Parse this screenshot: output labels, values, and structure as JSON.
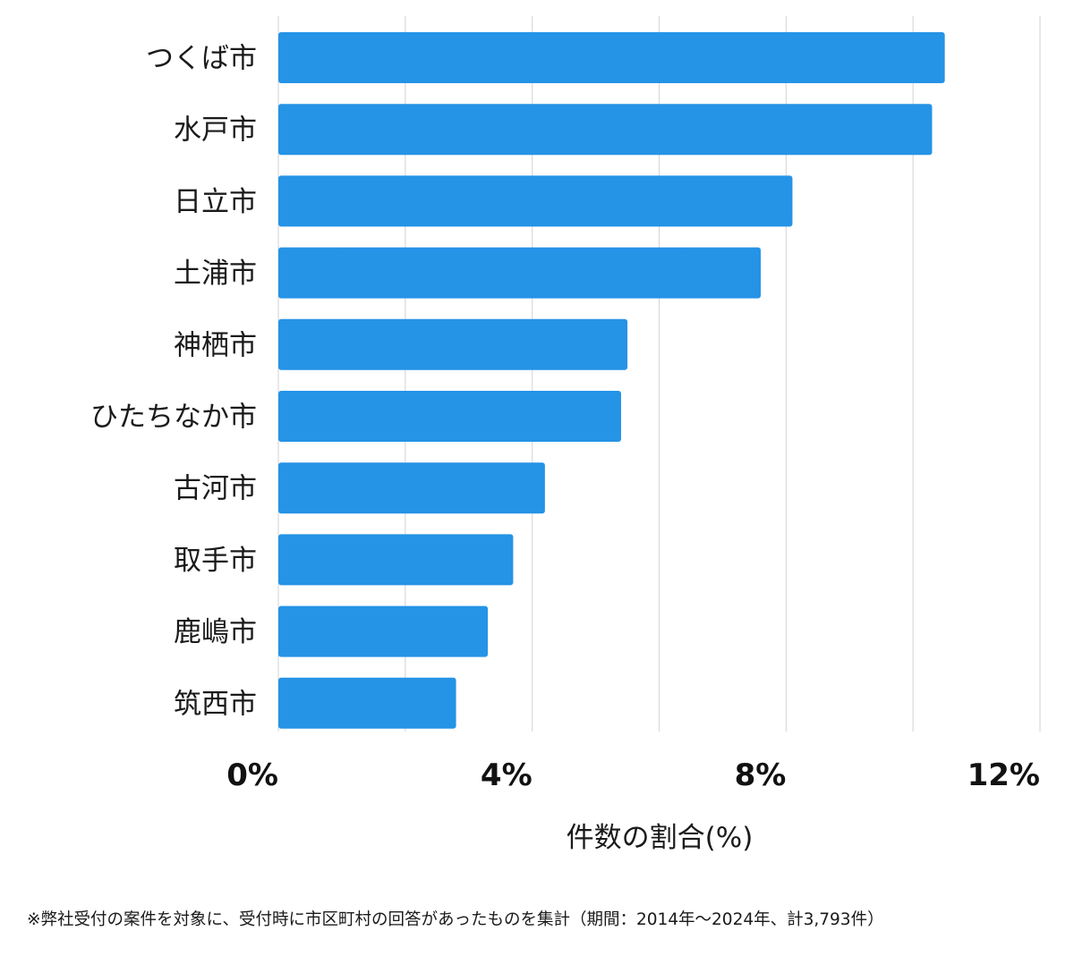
{
  "chart_data": {
    "type": "bar",
    "orientation": "horizontal",
    "categories": [
      "つくば市",
      "水戸市",
      "日立市",
      "土浦市",
      "神栖市",
      "ひたちなか市",
      "古河市",
      "取手市",
      "鹿嶋市",
      "筑西市"
    ],
    "values": [
      10.5,
      10.3,
      8.1,
      7.6,
      5.5,
      5.4,
      4.2,
      3.7,
      3.3,
      2.8
    ],
    "xlim": [
      0,
      12
    ],
    "xticks": [
      0,
      4,
      8,
      12
    ],
    "xtick_labels": [
      "0%",
      "4%",
      "8%",
      "12%"
    ],
    "xlabel": "件数の割合(%)",
    "grid": "vertical",
    "bar_color": "#2593e6",
    "grid_color": "#d9d9d9"
  },
  "footnote": "※弊社受付の案件を対象に、受付時に市区町村の回答があったものを集計（期間：2014年〜2024年、計3,793件）"
}
